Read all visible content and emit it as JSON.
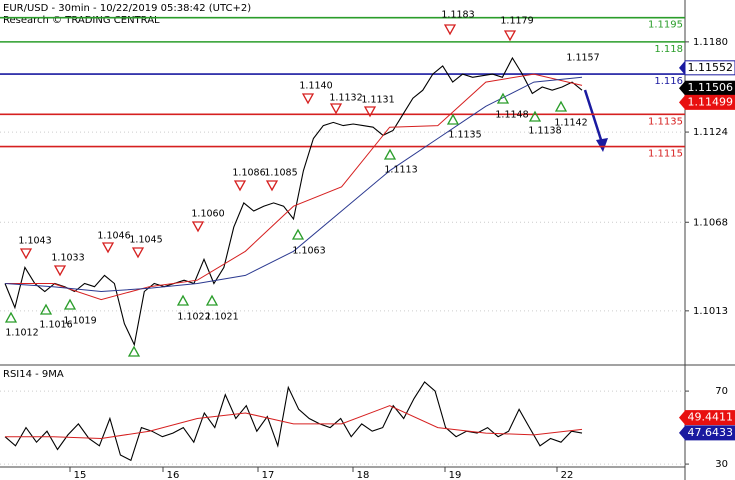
{
  "chart_data": [
    {
      "type": "line",
      "title": "EUR/USD - 30min - 10/22/2019 05:38:42 (UTC+2)",
      "subtitle": "Research © TRADING CENTRAL",
      "ylim": [
        1.098,
        1.1206
      ],
      "yticks": [
        1.1013,
        1.1068,
        1.1124,
        {
          "value": 1.118,
          "label": "1.1180"
        }
      ],
      "grid": true,
      "series": [
        {
          "color": "#000000",
          "values": [
            1.103,
            1.1015,
            1.104,
            1.103,
            1.1025,
            1.103,
            1.1028,
            1.1025,
            1.103,
            1.1028,
            1.1035,
            1.103,
            1.1005,
            1.0992,
            1.1025,
            1.103,
            1.1028,
            1.103,
            1.1032,
            1.103,
            1.1045,
            1.103,
            1.104,
            1.1065,
            1.108,
            1.1075,
            1.1078,
            1.108,
            1.1078,
            1.107,
            1.11,
            1.112,
            1.1128,
            1.113,
            1.1128,
            1.1129,
            1.1128,
            1.1127,
            1.1122,
            1.1125,
            1.1135,
            1.1145,
            1.115,
            1.116,
            1.1165,
            1.1155,
            1.116,
            1.1158,
            1.1159,
            1.116,
            1.1158,
            1.117,
            1.116,
            1.1148,
            1.1152,
            1.115,
            1.1152,
            1.1155,
            1.115
          ]
        },
        {
          "color": "#d62020",
          "values": [
            1.103,
            1.103,
            1.102,
            1.1028,
            1.1032,
            1.105,
            1.1078,
            1.109,
            1.1127,
            1.1128,
            1.1155,
            1.116,
            1.1153
          ]
        },
        {
          "color": "#2b3990",
          "values": [
            1.103,
            1.1028,
            1.1025,
            1.1027,
            1.103,
            1.1035,
            1.105,
            1.1075,
            1.11,
            1.112,
            1.114,
            1.1155,
            1.1158
          ]
        }
      ],
      "levels": [
        {
          "value": 1.1195,
          "color": "#2a9d2a"
        },
        {
          "value": 1.118,
          "color": "#2a9d2a"
        },
        {
          "value": 1.116,
          "color": "#1a1aa0"
        },
        {
          "value": 1.1135,
          "color": "#d62020"
        },
        {
          "value": 1.1115,
          "color": "#d62020"
        }
      ],
      "price_badges": [
        {
          "value": 1.11552,
          "color": "#ffffff"
        },
        {
          "value": 1.11506,
          "color": "#000000"
        },
        {
          "value": 1.11499,
          "color": "#e81010"
        }
      ],
      "annotations": [
        "1.1043",
        "1.1033",
        "1.1046",
        "1.1045",
        "1.1060",
        "1.1086",
        "1.1085",
        "1.1140",
        "1.1132",
        "1.1131",
        "1.1183",
        "1.1179",
        "1.1012",
        "1.1016",
        "1.1019",
        "1.1022",
        "1.1021",
        "1.1063",
        "1.1113",
        "1.1135",
        "1.1148",
        "1.1138",
        "1.1142",
        "1.1157"
      ]
    },
    {
      "type": "line",
      "title": "RSI14 - 9MA",
      "ylim": [
        28.4,
        83.2
      ],
      "yticks": [
        30,
        70
      ],
      "series": [
        {
          "color": "#000000",
          "values": [
            45,
            40,
            50,
            42,
            48,
            38,
            46,
            52,
            44,
            40,
            55,
            35,
            32,
            50,
            48,
            45,
            47,
            50,
            42,
            58,
            50,
            68,
            55,
            62,
            48,
            56,
            40,
            72,
            60,
            55,
            52,
            50,
            55,
            45,
            52,
            48,
            50,
            62,
            55,
            66,
            75,
            70,
            50,
            45,
            48,
            47,
            50,
            45,
            48,
            60,
            50,
            40,
            44,
            42,
            48,
            47
          ]
        },
        {
          "color": "#d62020",
          "values": [
            45,
            45,
            44,
            48,
            55,
            58,
            52,
            52,
            62,
            50,
            47,
            46,
            49
          ]
        }
      ],
      "badges": [
        {
          "value": 49.4411,
          "color": "#e81010"
        },
        {
          "value": 47.6433,
          "color": "#1a1aa0"
        }
      ],
      "day_labels": [
        "15",
        "16",
        "17",
        "18",
        "19",
        "22"
      ]
    }
  ]
}
